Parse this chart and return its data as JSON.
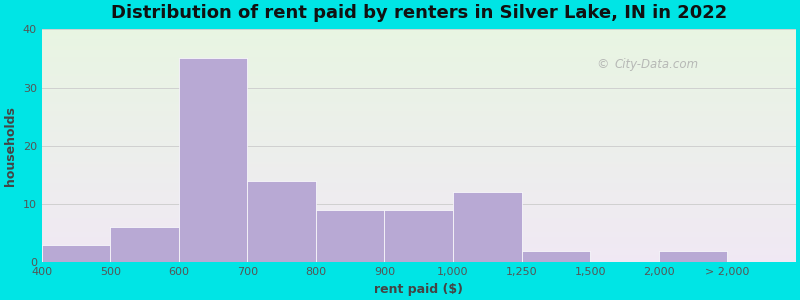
{
  "title": "Distribution of rent paid by renters in Silver Lake, IN in 2022",
  "xlabel": "rent paid ($)",
  "ylabel": "households",
  "bar_color": "#b8a9d4",
  "background_outer": "#00e5e5",
  "background_top": "#e8f5e2",
  "background_bottom": "#f0e8f4",
  "ylim": [
    0,
    40
  ],
  "yticks": [
    0,
    10,
    20,
    30,
    40
  ],
  "values": [
    3,
    6,
    35,
    14,
    9,
    9,
    12,
    2,
    0,
    2
  ],
  "xtick_labels": [
    "400",
    "500",
    "600",
    "700",
    "800",
    "900",
    "1,000",
    "1,250",
    "1,500",
    "2,000",
    "> 2,000"
  ],
  "title_fontsize": 13,
  "axis_label_fontsize": 9,
  "tick_fontsize": 8,
  "watermark_text": "City-Data.com",
  "grid_color": "#d0d0d0"
}
